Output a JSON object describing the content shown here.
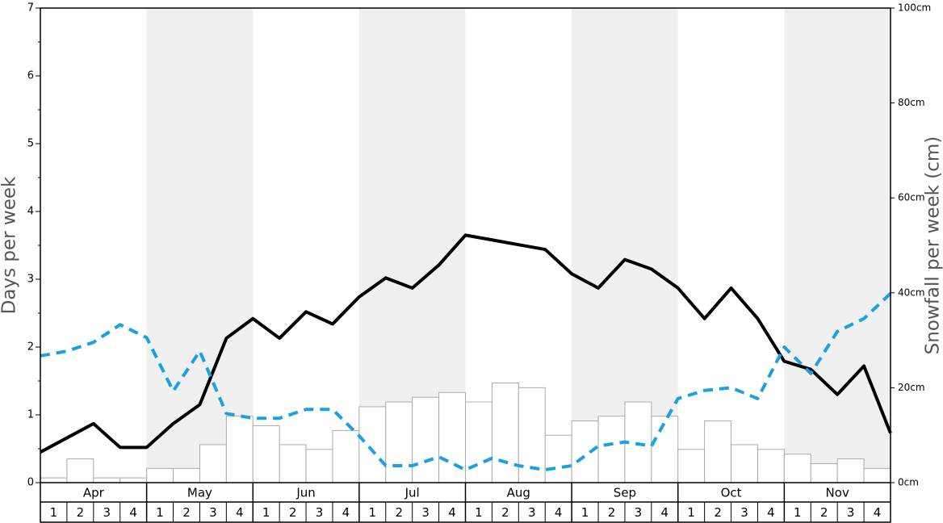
{
  "chart_data": {
    "type": "combo",
    "y_label": "Days per week",
    "y2_label": "Snowfall per week (cm)",
    "months": [
      "Apr",
      "May",
      "Jun",
      "Jul",
      "Aug",
      "Sep",
      "Oct",
      "Nov"
    ],
    "week_labels": [
      "1",
      "2",
      "3",
      "4"
    ],
    "ylim": [
      0,
      7
    ],
    "yticks": [
      0,
      1,
      2,
      3,
      4,
      5,
      6,
      7
    ],
    "y2lim": [
      0,
      100
    ],
    "y2ticks": [
      {
        "value": 0,
        "label": "0cm"
      },
      {
        "value": 20,
        "label": "20cm"
      },
      {
        "value": 40,
        "label": "40cm"
      },
      {
        "value": 60,
        "label": "60cm"
      },
      {
        "value": 80,
        "label": "80cm"
      },
      {
        "value": 100,
        "label": "100cm"
      }
    ],
    "band_color": "#f0f0f0",
    "series": [
      {
        "type": "bar",
        "axis": "y2",
        "color": "#ffffff",
        "values": [
          1,
          5,
          1,
          1,
          3,
          3,
          8,
          14,
          12,
          8,
          7,
          11,
          16,
          17,
          18,
          19,
          17,
          21,
          20,
          10,
          13,
          14,
          17,
          14,
          7,
          13,
          8,
          7,
          6,
          4,
          5,
          3
        ]
      },
      {
        "type": "line",
        "axis": "y",
        "color": "#000000",
        "dashed": false,
        "values": [
          0.45,
          0.66,
          0.87,
          0.52,
          0.52,
          0.87,
          1.15,
          2.13,
          2.42,
          2.13,
          2.52,
          2.34,
          2.74,
          3.02,
          2.87,
          3.21,
          3.65,
          3.58,
          3.51,
          3.44,
          3.08,
          2.87,
          3.29,
          3.15,
          2.87,
          2.42,
          2.87,
          2.42,
          1.79,
          1.67,
          1.3,
          1.72,
          0.73
        ]
      },
      {
        "type": "line",
        "axis": "y",
        "color": "#1ba1e2",
        "dashed": true,
        "values": [
          1.87,
          1.94,
          2.07,
          2.33,
          2.14,
          1.35,
          1.94,
          1.02,
          0.95,
          0.95,
          1.08,
          1.08,
          0.69,
          0.25,
          0.25,
          0.38,
          0.19,
          0.36,
          0.25,
          0.19,
          0.25,
          0.54,
          0.6,
          0.54,
          1.24,
          1.36,
          1.4,
          1.24,
          2.0,
          1.61,
          2.23,
          2.42,
          2.79
        ]
      }
    ]
  }
}
